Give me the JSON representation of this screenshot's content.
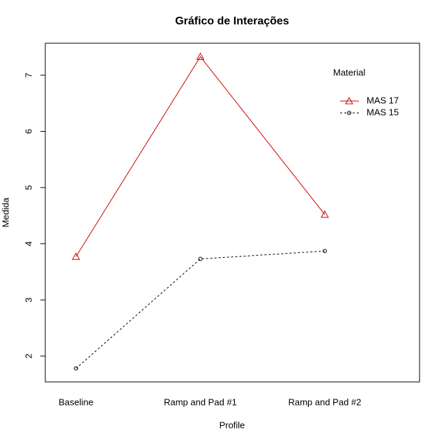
{
  "chart_data": {
    "type": "line",
    "title": "Gráfico de Interações",
    "x_label": "Profile",
    "y_label": "Medida",
    "categories": [
      "Baseline",
      "Ramp and Pad #1",
      "Ramp and Pad #2"
    ],
    "legend_title": "Material",
    "series": [
      {
        "name": "MAS 17",
        "color": "#cc0000",
        "values": [
          3.77,
          7.33,
          4.52
        ]
      },
      {
        "name": "MAS 15",
        "color": "#000000",
        "values": [
          1.78,
          3.73,
          3.87
        ]
      }
    ],
    "ylim": [
      1.54,
      7.57
    ],
    "yticks": [
      2,
      3,
      4,
      5,
      6,
      7
    ]
  }
}
